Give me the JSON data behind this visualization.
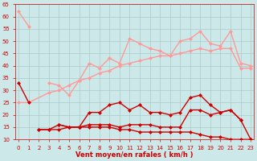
{
  "x": [
    0,
    1,
    2,
    3,
    4,
    5,
    6,
    7,
    8,
    9,
    10,
    11,
    12,
    13,
    14,
    15,
    16,
    17,
    18,
    19,
    20,
    21,
    22,
    23
  ],
  "series": [
    {
      "y": [
        62,
        56,
        null,
        null,
        null,
        null,
        null,
        null,
        null,
        null,
        null,
        null,
        null,
        null,
        null,
        null,
        null,
        null,
        null,
        null,
        null,
        null,
        null,
        null
      ],
      "color": "#ff9999",
      "lw": 1.0,
      "ms": 2.5,
      "marker": "D"
    },
    {
      "y": [
        null,
        null,
        null,
        33,
        32,
        28,
        34,
        41,
        39,
        43,
        41,
        51,
        49,
        47,
        46,
        44,
        50,
        51,
        54,
        49,
        48,
        54,
        41,
        40
      ],
      "color": "#ff9999",
      "lw": 1.0,
      "ms": 2.5,
      "marker": "D"
    },
    {
      "y": [
        25,
        25,
        null,
        29,
        30,
        32,
        34,
        35,
        37,
        38,
        40,
        41,
        42,
        43,
        44,
        44,
        45,
        46,
        47,
        46,
        47,
        47,
        39,
        39
      ],
      "color": "#ff9999",
      "lw": 1.0,
      "ms": 2.5,
      "marker": "D"
    },
    {
      "y": [
        33,
        25,
        null,
        null,
        null,
        null,
        null,
        null,
        null,
        null,
        null,
        null,
        null,
        null,
        null,
        null,
        null,
        null,
        null,
        null,
        null,
        null,
        null,
        null
      ],
      "color": "#cc0000",
      "lw": 1.0,
      "ms": 2.5,
      "marker": "D"
    },
    {
      "y": [
        null,
        null,
        null,
        null,
        16,
        15,
        15,
        21,
        21,
        24,
        25,
        22,
        24,
        21,
        21,
        20,
        21,
        27,
        28,
        24,
        21,
        22,
        18,
        null
      ],
      "color": "#cc0000",
      "lw": 1.0,
      "ms": 2.5,
      "marker": "D"
    },
    {
      "y": [
        null,
        null,
        14,
        14,
        16,
        15,
        15,
        16,
        16,
        16,
        15,
        16,
        16,
        16,
        15,
        15,
        15,
        22,
        22,
        20,
        21,
        22,
        18,
        10
      ],
      "color": "#cc0000",
      "lw": 1.0,
      "ms": 2.5,
      "marker": "D"
    },
    {
      "y": [
        null,
        null,
        14,
        14,
        14,
        15,
        15,
        15,
        15,
        15,
        14,
        14,
        13,
        13,
        13,
        13,
        13,
        13,
        12,
        11,
        11,
        10,
        10,
        10
      ],
      "color": "#cc0000",
      "lw": 1.0,
      "ms": 2.5,
      "marker": "D"
    }
  ],
  "background_color": "#cce8e8",
  "grid_color": "#aacccc",
  "xlabel": "Vent moyen/en rafales ( km/h )",
  "xlabel_color": "#cc0000",
  "tick_color": "#cc0000",
  "ylim": [
    10,
    65
  ],
  "xlim_min": -0.3,
  "xlim_max": 23.3,
  "yticks": [
    10,
    15,
    20,
    25,
    30,
    35,
    40,
    45,
    50,
    55,
    60,
    65
  ],
  "xticks": [
    0,
    1,
    2,
    3,
    4,
    5,
    6,
    7,
    8,
    9,
    10,
    11,
    12,
    13,
    14,
    15,
    16,
    17,
    18,
    19,
    20,
    21,
    22,
    23
  ],
  "tick_fontsize": 5,
  "xlabel_fontsize": 6
}
